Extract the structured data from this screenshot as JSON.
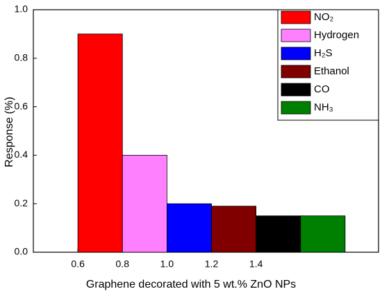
{
  "chart_data": {
    "type": "bar",
    "x_label": "Graphene decorated with 5 wt.% ZnO NPs",
    "y_label": "Response (%)",
    "xlim": [
      0.4,
      1.95
    ],
    "xticks": [
      0.6,
      0.8,
      {
        "value": 1.0,
        "label": "1.0"
      },
      1.2,
      1.4
    ],
    "ylim": [
      0,
      1
    ],
    "yticks": [
      {
        "value": 0,
        "label": "0.0"
      },
      0.2,
      0.4,
      0.6,
      0.8,
      {
        "value": 1.0,
        "label": "1.0"
      }
    ],
    "legend": "top-right",
    "series": [
      {
        "name": "NO₂",
        "color": "#ff0000",
        "x": [
          0.7
        ],
        "values": [
          0.9
        ]
      },
      {
        "name": "Hydrogen",
        "color": "#ff80ff",
        "x": [
          0.9
        ],
        "values": [
          0.4
        ]
      },
      {
        "name": "H₂S",
        "color": "#0000ff",
        "x": [
          1.1
        ],
        "values": [
          0.2
        ]
      },
      {
        "name": "Ethanol",
        "color": "#800000",
        "x": [
          1.3
        ],
        "values": [
          0.19
        ]
      },
      {
        "name": "CO",
        "color": "#000000",
        "x": [
          1.5
        ],
        "values": [
          0.15
        ]
      },
      {
        "name": "NH₃",
        "color": "#008000",
        "x": [
          1.7
        ],
        "values": [
          0.15
        ]
      }
    ]
  }
}
